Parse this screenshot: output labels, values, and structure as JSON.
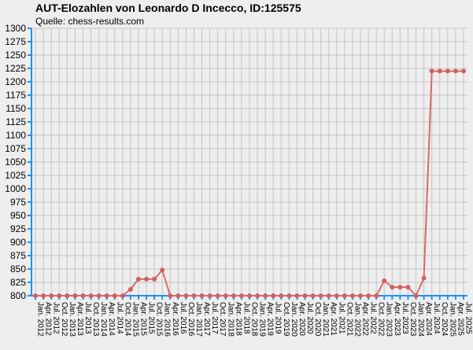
{
  "header": {
    "title": "AUT-Elozahlen von Leonardo D Incecco, ID:125575",
    "subtitle": "Quelle: chess-results.com"
  },
  "colors": {
    "line": "#d96b6b",
    "marker": "#d06060",
    "grid": "#c4c4c4",
    "axis": "#1e90ff",
    "background": "#eeeeee"
  },
  "chart_data": {
    "type": "line",
    "title": "AUT-Elozahlen von Leonardo D Incecco, ID:125575",
    "subtitle": "Quelle: chess-results.com",
    "xlabel": "",
    "ylabel": "",
    "ylim": [
      800,
      1300
    ],
    "ytick_step": 25,
    "grid": true,
    "legend": "none",
    "categories": [
      "Jan. 2012",
      "Apr. 2012",
      "Jul. 2012",
      "Oct. 2012",
      "Jan. 2013",
      "Apr. 2013",
      "Jul. 2013",
      "Oct. 2013",
      "Jan. 2014",
      "Apr. 2014",
      "Jul. 2014",
      "Oct. 2014",
      "Jan. 2015",
      "Apr. 2015",
      "Jul. 2015",
      "Oct. 2015",
      "Jan. 2016",
      "Apr. 2016",
      "Jul. 2016",
      "Oct. 2016",
      "Jan. 2017",
      "Apr. 2017",
      "Jul. 2017",
      "Oct. 2017",
      "Jan. 2018",
      "Apr. 2018",
      "Jul. 2018",
      "Oct. 2018",
      "Jan. 2019",
      "Apr. 2019",
      "Jul. 2019",
      "Oct. 2019",
      "Jan. 2020",
      "Apr. 2020",
      "Jul. 2020",
      "Oct. 2020",
      "Jan. 2021",
      "Apr. 2021",
      "Jul. 2021",
      "Oct. 2021",
      "Jan. 2022",
      "Apr. 2022",
      "Jul. 2022",
      "Oct. 2022",
      "Jan. 2023",
      "Apr. 2023",
      "Jul. 2023",
      "Oct. 2023",
      "Jan. 2024",
      "Apr. 2024",
      "Jul. 2024",
      "Oct. 2024",
      "Jan. 2025",
      "Apr. 2025",
      "Jul. 2025"
    ],
    "values": [
      800,
      800,
      800,
      800,
      800,
      800,
      800,
      800,
      800,
      800,
      800,
      800,
      812,
      831,
      831,
      831,
      848,
      800,
      800,
      800,
      800,
      800,
      800,
      800,
      800,
      800,
      800,
      800,
      800,
      800,
      800,
      800,
      800,
      800,
      800,
      800,
      800,
      800,
      800,
      800,
      800,
      800,
      800,
      800,
      828,
      816,
      816,
      816,
      800,
      833,
      1220,
      1220,
      1220,
      1220,
      1220
    ]
  }
}
